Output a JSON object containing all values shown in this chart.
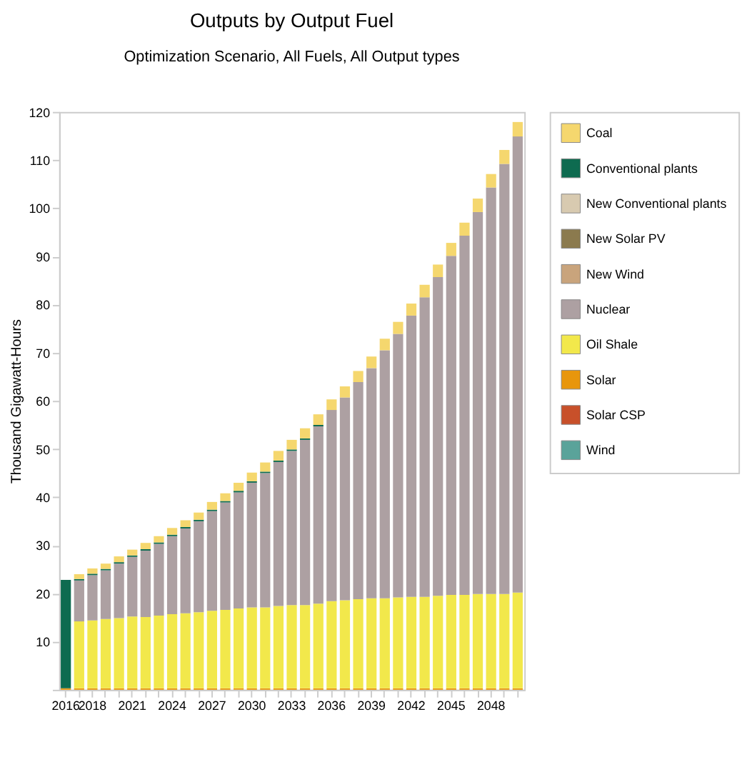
{
  "chart_data": {
    "type": "bar",
    "stacked": true,
    "title": "Outputs by Output Fuel",
    "subtitle": "Optimization Scenario, All Fuels, All Output types",
    "ylabel": "Thousand Gigawatt-Hours",
    "categories": [
      "2016",
      null,
      "2018",
      null,
      null,
      "2021",
      null,
      null,
      "2024",
      null,
      null,
      "2027",
      null,
      null,
      "2030",
      null,
      null,
      "2033",
      null,
      null,
      "2036",
      null,
      null,
      "2039",
      null,
      null,
      "2042",
      null,
      null,
      "2045",
      null,
      null,
      "2048",
      null,
      null
    ],
    "ylim": [
      0,
      120
    ],
    "yticks": [
      {
        "value": 0,
        "label": null
      },
      10,
      20,
      30,
      40,
      50,
      60,
      70,
      80,
      90,
      100,
      110,
      120
    ],
    "grid": false,
    "legend": "top right",
    "series": [
      {
        "name": "Solar",
        "color": "#e8960c",
        "values": [
          0.3,
          0.3,
          0.3,
          0.3,
          0.3,
          0.3,
          0.3,
          0.3,
          0.3,
          0.3,
          0.3,
          0.3,
          0.3,
          0.3,
          0.3,
          0.3,
          0.3,
          0.3,
          0.3,
          0.3,
          0.3,
          0.3,
          0.3,
          0.3,
          0.3,
          0.3,
          0.3,
          0.3,
          0.3,
          0.3,
          0.3,
          0.3,
          0.3,
          0.3,
          0.3
        ]
      },
      {
        "name": "Oil Shale",
        "color": "#f2e84b",
        "values": [
          0,
          13.9,
          14.1,
          14.4,
          14.6,
          14.9,
          14.8,
          15.1,
          15.4,
          15.6,
          15.8,
          16.1,
          16.3,
          16.6,
          16.8,
          16.8,
          17.1,
          17.3,
          17.3,
          17.6,
          18.1,
          18.3,
          18.5,
          18.7,
          18.7,
          18.9,
          19.0,
          19.0,
          19.2,
          19.4,
          19.4,
          19.6,
          19.6,
          19.6,
          19.9
        ]
      },
      {
        "name": "Nuclear",
        "color": "#ada0a2",
        "values": [
          0,
          8.5,
          9.4,
          10.1,
          11.3,
          12.4,
          13.8,
          14.9,
          16.2,
          17.6,
          18.9,
          20.7,
          22.3,
          24.1,
          25.9,
          27.9,
          29.9,
          32.0,
          34.3,
          36.8,
          39.7,
          42.1,
          45.1,
          47.8,
          51.5,
          54.7,
          58.4,
          62.2,
          66.2,
          70.4,
          74.6,
          79.3,
          84.4,
          89.3,
          94.7
        ]
      },
      {
        "name": "Conventional plants",
        "color": "#0e6b50",
        "values": [
          22.5,
          0.3,
          0.3,
          0.3,
          0.3,
          0.3,
          0.3,
          0.3,
          0.3,
          0.3,
          0.3,
          0.3,
          0.3,
          0.3,
          0.3,
          0.3,
          0.3,
          0.3,
          0.3,
          0.3,
          0,
          0,
          0,
          0,
          0,
          0,
          0,
          0,
          0,
          0,
          0,
          0,
          0,
          0,
          0
        ]
      },
      {
        "name": "Coal",
        "color": "#f5d76e",
        "values": [
          0,
          1.0,
          1.1,
          1.1,
          1.2,
          1.2,
          1.3,
          1.3,
          1.4,
          1.4,
          1.5,
          1.6,
          1.6,
          1.7,
          1.8,
          1.9,
          2.0,
          2.0,
          2.1,
          2.2,
          2.2,
          2.3,
          2.3,
          2.4,
          2.4,
          2.5,
          2.5,
          2.6,
          2.6,
          2.7,
          2.7,
          2.8,
          2.8,
          2.9,
          3.0
        ]
      },
      {
        "name": "New Conventional plants",
        "color": "#d8cab0",
        "values": [
          0,
          0,
          0,
          0,
          0,
          0,
          0,
          0,
          0,
          0,
          0,
          0,
          0,
          0,
          0,
          0,
          0,
          0,
          0,
          0,
          0,
          0,
          0,
          0,
          0,
          0,
          0,
          0,
          0,
          0,
          0,
          0,
          0,
          0,
          0
        ]
      },
      {
        "name": "New Solar PV",
        "color": "#8b7a4e",
        "values": [
          0,
          0,
          0,
          0,
          0,
          0,
          0,
          0,
          0,
          0,
          0,
          0,
          0,
          0,
          0,
          0,
          0,
          0,
          0,
          0,
          0,
          0,
          0,
          0,
          0,
          0,
          0,
          0,
          0,
          0,
          0,
          0,
          0,
          0,
          0
        ]
      },
      {
        "name": "New Wind",
        "color": "#c9a47c",
        "values": [
          0,
          0,
          0,
          0,
          0,
          0,
          0,
          0,
          0,
          0,
          0,
          0,
          0,
          0,
          0,
          0,
          0,
          0,
          0,
          0,
          0,
          0,
          0,
          0,
          0,
          0,
          0,
          0,
          0,
          0,
          0,
          0,
          0,
          0,
          0
        ]
      },
      {
        "name": "Solar CSP",
        "color": "#c8502a",
        "values": [
          0,
          0,
          0,
          0,
          0,
          0,
          0,
          0,
          0,
          0,
          0,
          0,
          0,
          0,
          0,
          0,
          0,
          0,
          0,
          0,
          0,
          0,
          0,
          0,
          0,
          0,
          0,
          0,
          0,
          0,
          0,
          0,
          0,
          0,
          0
        ]
      },
      {
        "name": "Wind",
        "color": "#5aa39a",
        "values": [
          0,
          0,
          0,
          0,
          0,
          0,
          0,
          0,
          0,
          0,
          0,
          0,
          0,
          0,
          0,
          0,
          0,
          0,
          0,
          0,
          0,
          0,
          0,
          0,
          0,
          0,
          0,
          0,
          0,
          0,
          0,
          0,
          0,
          0,
          0
        ]
      }
    ]
  }
}
